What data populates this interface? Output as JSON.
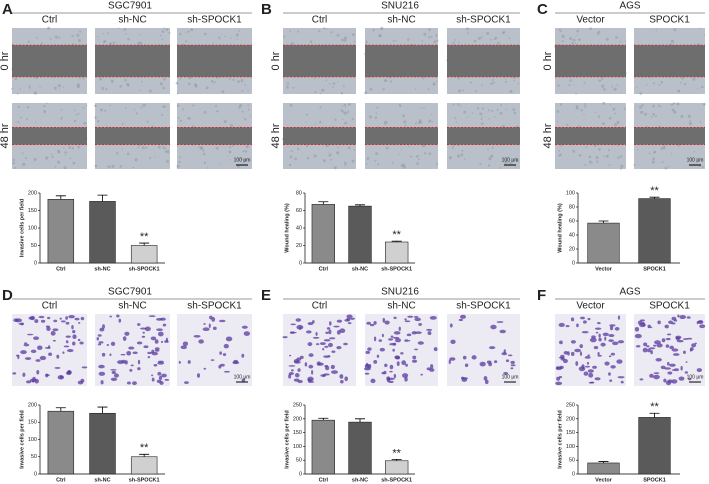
{
  "panels": [
    {
      "letter": "A",
      "title": "SGC7901",
      "columns": [
        "Ctrl",
        "sh-NC",
        "sh-SPOCK1"
      ],
      "rows": [
        "0 hr",
        "48 hr"
      ],
      "scale_bar": "100 μm"
    },
    {
      "letter": "B",
      "title": "SNU216",
      "columns": [
        "Ctrl",
        "sh-NC",
        "sh-SPOCK1"
      ],
      "rows": [
        "0 hr",
        "48 hr"
      ],
      "scale_bar": "100 μm"
    },
    {
      "letter": "C",
      "title": "AGS",
      "columns": [
        "Vector",
        "SPOCK1"
      ],
      "rows": [
        "0 hr",
        "48 hr"
      ],
      "scale_bar": "100 μm"
    },
    {
      "letter": "D",
      "title": "SGC7901",
      "columns": [
        "Ctrl",
        "sh-NC",
        "sh-SPOCK1"
      ],
      "rows": [],
      "scale_bar": "100 μm"
    },
    {
      "letter": "E",
      "title": "SNU216",
      "columns": [
        "Ctrl",
        "sh-NC",
        "sh-SPOCK1"
      ],
      "rows": [],
      "scale_bar": "100 μm"
    },
    {
      "letter": "F",
      "title": "AGS",
      "columns": [
        "Vector",
        "SPOCK1"
      ],
      "rows": [],
      "scale_bar": "100 μm"
    }
  ],
  "chart_data": [
    {
      "type": "bar",
      "y_label": "Invasive cells per field",
      "categories": [
        "Ctrl",
        "sh-NC",
        "sh-SPOCK1"
      ],
      "values": [
        182,
        176,
        50
      ],
      "errors": [
        10,
        18,
        7
      ],
      "colors": [
        "#8a8a8a",
        "#5a5a5a",
        "#d0d0d0"
      ],
      "ylim": [
        0,
        200
      ],
      "yticks": [
        0,
        50,
        100,
        150,
        200
      ],
      "annotations": [
        {
          "category": "sh-SPOCK1",
          "text": "**"
        }
      ]
    },
    {
      "type": "bar",
      "y_label": "Wound healing (%)",
      "categories": [
        "Ctrl",
        "sh-NC",
        "sh-SPOCK1"
      ],
      "values": [
        67,
        65,
        24
      ],
      "errors": [
        3,
        1.5,
        1
      ],
      "colors": [
        "#8a8a8a",
        "#5a5a5a",
        "#d0d0d0"
      ],
      "ylim": [
        0,
        80
      ],
      "yticks": [
        0,
        20,
        40,
        60,
        80
      ],
      "annotations": [
        {
          "category": "sh-SPOCK1",
          "text": "**"
        }
      ]
    },
    {
      "type": "bar",
      "y_label": "Wound healing (%)",
      "categories": [
        "Vector",
        "SPOCK1"
      ],
      "values": [
        57,
        92
      ],
      "errors": [
        3,
        2
      ],
      "colors": [
        "#8a8a8a",
        "#5a5a5a"
      ],
      "ylim": [
        0,
        100
      ],
      "yticks": [
        0,
        20,
        40,
        60,
        80,
        100
      ],
      "annotations": [
        {
          "category": "SPOCK1",
          "text": "**"
        }
      ]
    },
    {
      "type": "bar",
      "y_label": "Invasive cells per field",
      "categories": [
        "Ctrl",
        "sh-NC",
        "sh-SPOCK1"
      ],
      "values": [
        182,
        176,
        50
      ],
      "errors": [
        10,
        18,
        7
      ],
      "colors": [
        "#8a8a8a",
        "#5a5a5a",
        "#d0d0d0"
      ],
      "ylim": [
        0,
        200
      ],
      "yticks": [
        0,
        50,
        100,
        150,
        200
      ],
      "annotations": [
        {
          "category": "sh-SPOCK1",
          "text": "**"
        }
      ]
    },
    {
      "type": "bar",
      "y_label": "Invasive cells per field",
      "categories": [
        "Ctrl",
        "sh-NC",
        "sh-SPOCK1"
      ],
      "values": [
        195,
        188,
        48
      ],
      "errors": [
        7,
        12,
        5
      ],
      "colors": [
        "#8a8a8a",
        "#5a5a5a",
        "#d0d0d0"
      ],
      "ylim": [
        0,
        250
      ],
      "yticks": [
        0,
        50,
        100,
        150,
        200,
        250
      ],
      "annotations": [
        {
          "category": "sh-SPOCK1",
          "text": "**"
        }
      ]
    },
    {
      "type": "bar",
      "y_label": "Invasive cells per field",
      "categories": [
        "Vector",
        "SPOCK1"
      ],
      "values": [
        40,
        205
      ],
      "errors": [
        5,
        15
      ],
      "colors": [
        "#8a8a8a",
        "#5a5a5a"
      ],
      "ylim": [
        0,
        250
      ],
      "yticks": [
        0,
        50,
        100,
        150,
        200,
        250
      ],
      "annotations": [
        {
          "category": "SPOCK1",
          "text": "**"
        }
      ]
    }
  ]
}
